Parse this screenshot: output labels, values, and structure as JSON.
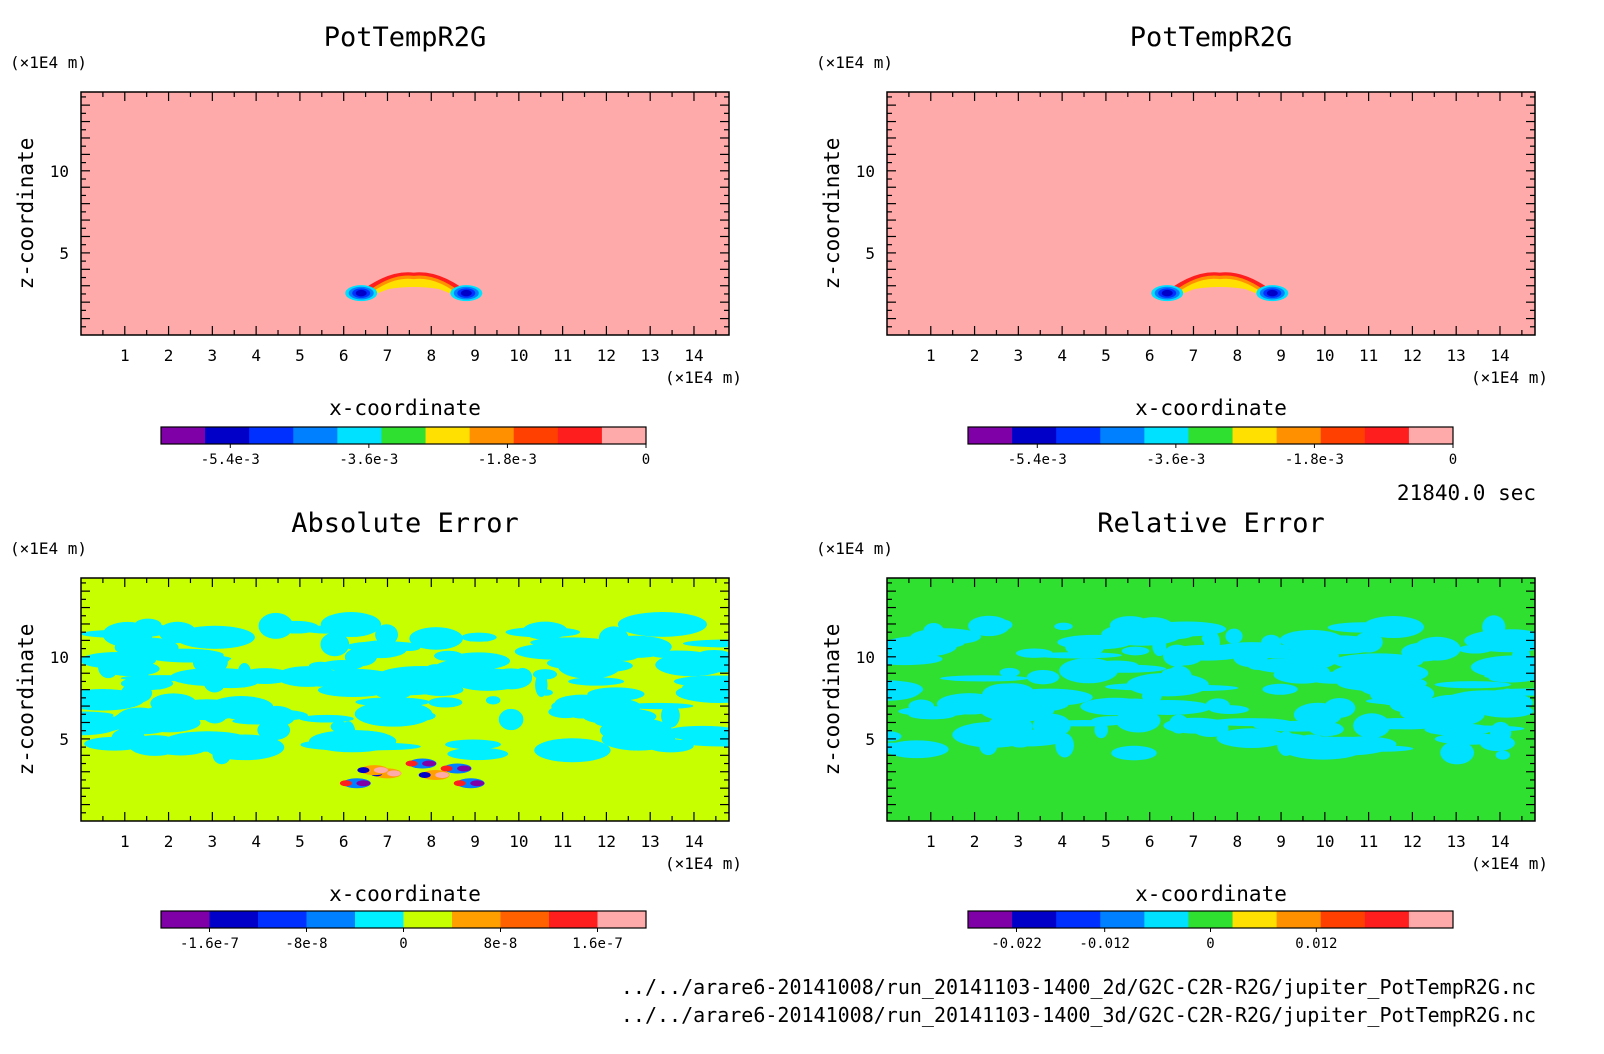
{
  "chart_data": [
    {
      "type": "heatmap",
      "title": "PotTempR2G",
      "xlabel": "x-coordinate",
      "ylabel": "z-coordinate",
      "x_unit": "(×1E4 m)",
      "y_unit": "(×1E4 m)",
      "xlim": [
        0,
        14.8
      ],
      "ylim": [
        0,
        14.8
      ],
      "x_ticks": [
        1,
        2,
        3,
        4,
        5,
        6,
        7,
        8,
        9,
        10,
        11,
        12,
        13,
        14
      ],
      "y_ticks": [
        5,
        10
      ],
      "background_value": 0,
      "features": [
        {
          "kind": "warm-bubble arch",
          "center_x": 7.6,
          "base_z": 2.2,
          "top_z": 4.0,
          "min_value": -0.0059
        }
      ],
      "colorbar": {
        "levels": 11,
        "range": [
          -0.0063,
          0
        ],
        "colors": [
          "#8000a8",
          "#0000c8",
          "#0030ff",
          "#0080ff",
          "#00e0ff",
          "#30e030",
          "#ffe000",
          "#ff9000",
          "#ff4000",
          "#ff1e1e",
          "#ffaaaa"
        ],
        "tick_labels": [
          "-5.4e-3",
          "-3.6e-3",
          "-1.8e-3",
          "0"
        ],
        "tick_values": [
          -0.0054,
          -0.0036,
          -0.0018,
          0
        ]
      }
    },
    {
      "type": "heatmap",
      "title": "PotTempR2G",
      "xlabel": "x-coordinate",
      "ylabel": "z-coordinate",
      "x_unit": "(×1E4 m)",
      "y_unit": "(×1E4 m)",
      "xlim": [
        0,
        14.8
      ],
      "ylim": [
        0,
        14.8
      ],
      "x_ticks": [
        1,
        2,
        3,
        4,
        5,
        6,
        7,
        8,
        9,
        10,
        11,
        12,
        13,
        14
      ],
      "y_ticks": [
        5,
        10
      ],
      "background_value": 0,
      "features": [
        {
          "kind": "warm-bubble arch",
          "center_x": 7.6,
          "base_z": 2.2,
          "top_z": 4.0,
          "min_value": -0.0059
        }
      ],
      "colorbar": {
        "levels": 11,
        "range": [
          -0.0063,
          0
        ],
        "colors": [
          "#8000a8",
          "#0000c8",
          "#0030ff",
          "#0080ff",
          "#00e0ff",
          "#30e030",
          "#ffe000",
          "#ff9000",
          "#ff4000",
          "#ff1e1e",
          "#ffaaaa"
        ],
        "tick_labels": [
          "-5.4e-3",
          "-3.6e-3",
          "-1.8e-3",
          "0"
        ],
        "tick_values": [
          -0.0054,
          -0.0036,
          -0.0018,
          0
        ]
      }
    },
    {
      "type": "heatmap",
      "title": "Absolute Error",
      "xlabel": "x-coordinate",
      "ylabel": "z-coordinate",
      "x_unit": "(×1E4 m)",
      "y_unit": "(×1E4 m)",
      "xlim": [
        0,
        14.8
      ],
      "ylim": [
        0,
        14.8
      ],
      "x_ticks": [
        1,
        2,
        3,
        4,
        5,
        6,
        7,
        8,
        9,
        10,
        11,
        12,
        13,
        14
      ],
      "y_ticks": [
        5,
        10
      ],
      "background_value": 0,
      "features": [
        {
          "kind": "noise band",
          "z_range": [
            4,
            12
          ],
          "value": -3e-08
        },
        {
          "kind": "error dipoles",
          "x_range": [
            6,
            9.2
          ],
          "z_range": [
            2.0,
            3.8
          ],
          "max_abs_value": 1.8e-07
        }
      ],
      "colorbar": {
        "levels": 10,
        "range": [
          -2e-07,
          2e-07
        ],
        "colors": [
          "#8000a8",
          "#0000c8",
          "#0030ff",
          "#0080ff",
          "#00f0ff",
          "#c8ff00",
          "#ffa000",
          "#ff6000",
          "#ff1e1e",
          "#ffaaaa"
        ],
        "tick_labels": [
          "-1.6e-7",
          "-8e-8",
          "0",
          "8e-8",
          "1.6e-7"
        ],
        "tick_values": [
          -1.6e-07,
          -8e-08,
          0,
          8e-08,
          1.6e-07
        ]
      }
    },
    {
      "type": "heatmap",
      "title": "Relative Error",
      "xlabel": "x-coordinate",
      "ylabel": "z-coordinate",
      "x_unit": "(×1E4 m)",
      "y_unit": "(×1E4 m)",
      "xlim": [
        0,
        14.8
      ],
      "ylim": [
        0,
        14.8
      ],
      "x_ticks": [
        1,
        2,
        3,
        4,
        5,
        6,
        7,
        8,
        9,
        10,
        11,
        12,
        13,
        14
      ],
      "y_ticks": [
        5,
        10
      ],
      "background_value": 0,
      "features": [
        {
          "kind": "noise band",
          "z_range": [
            4,
            12
          ],
          "value": -0.004
        }
      ],
      "colorbar": {
        "levels": 11,
        "range": [
          -0.0275,
          0.0275
        ],
        "colors": [
          "#8000a8",
          "#0000c8",
          "#0030ff",
          "#0080ff",
          "#00e0ff",
          "#30e030",
          "#ffe000",
          "#ff9000",
          "#ff4000",
          "#ff1e1e",
          "#ffaaaa"
        ],
        "tick_labels": [
          "-0.022",
          "-0.012",
          "0",
          "0.012"
        ],
        "tick_values": [
          -0.022,
          -0.012,
          0,
          0.012
        ]
      }
    }
  ],
  "time_label": "21840.0 sec",
  "files": [
    "../../arare6-20141008/run_20141103-1400_2d/G2C-C2R-R2G/jupiter_PotTempR2G.nc",
    "../../arare6-20141008/run_20141103-1400_3d/G2C-C2R-R2G/jupiter_PotTempR2G.nc"
  ]
}
